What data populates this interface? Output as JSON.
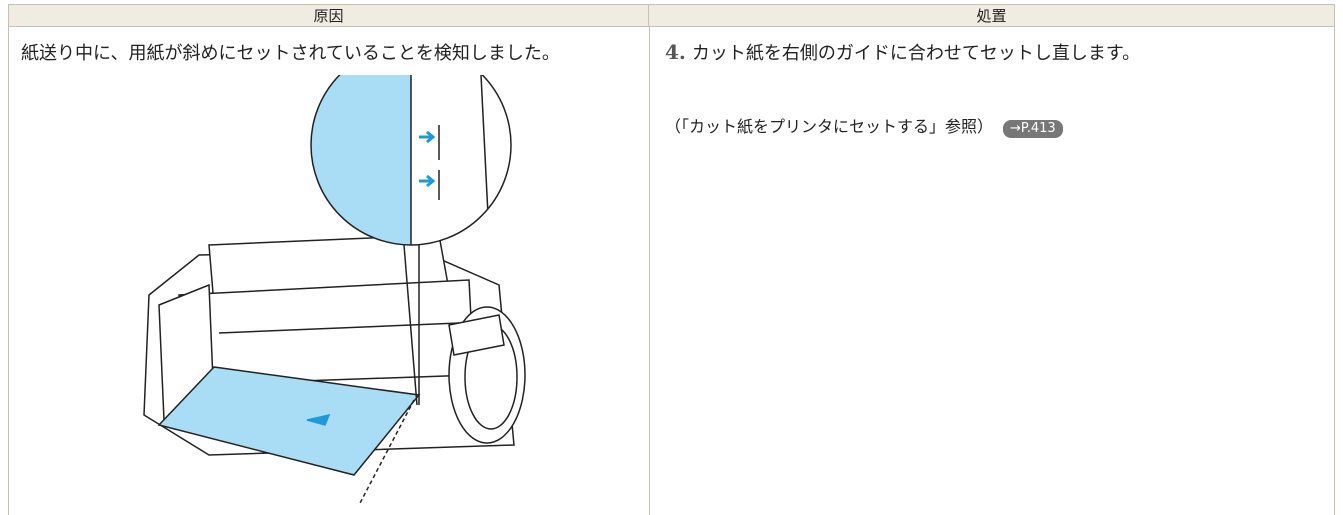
{
  "table": {
    "header": [
      "原因",
      "処置"
    ],
    "rows": [
      {
        "cause": "紙送り中に、用紙が斜めにセットされていることを検知しました。",
        "step_number": "4.",
        "step_text": "カット紙を右側のガイドに合わせてセットし直します。",
        "reference": "（「カット紙をプリンタにセットする」参照）",
        "link": "→P.413"
      }
    ]
  }
}
